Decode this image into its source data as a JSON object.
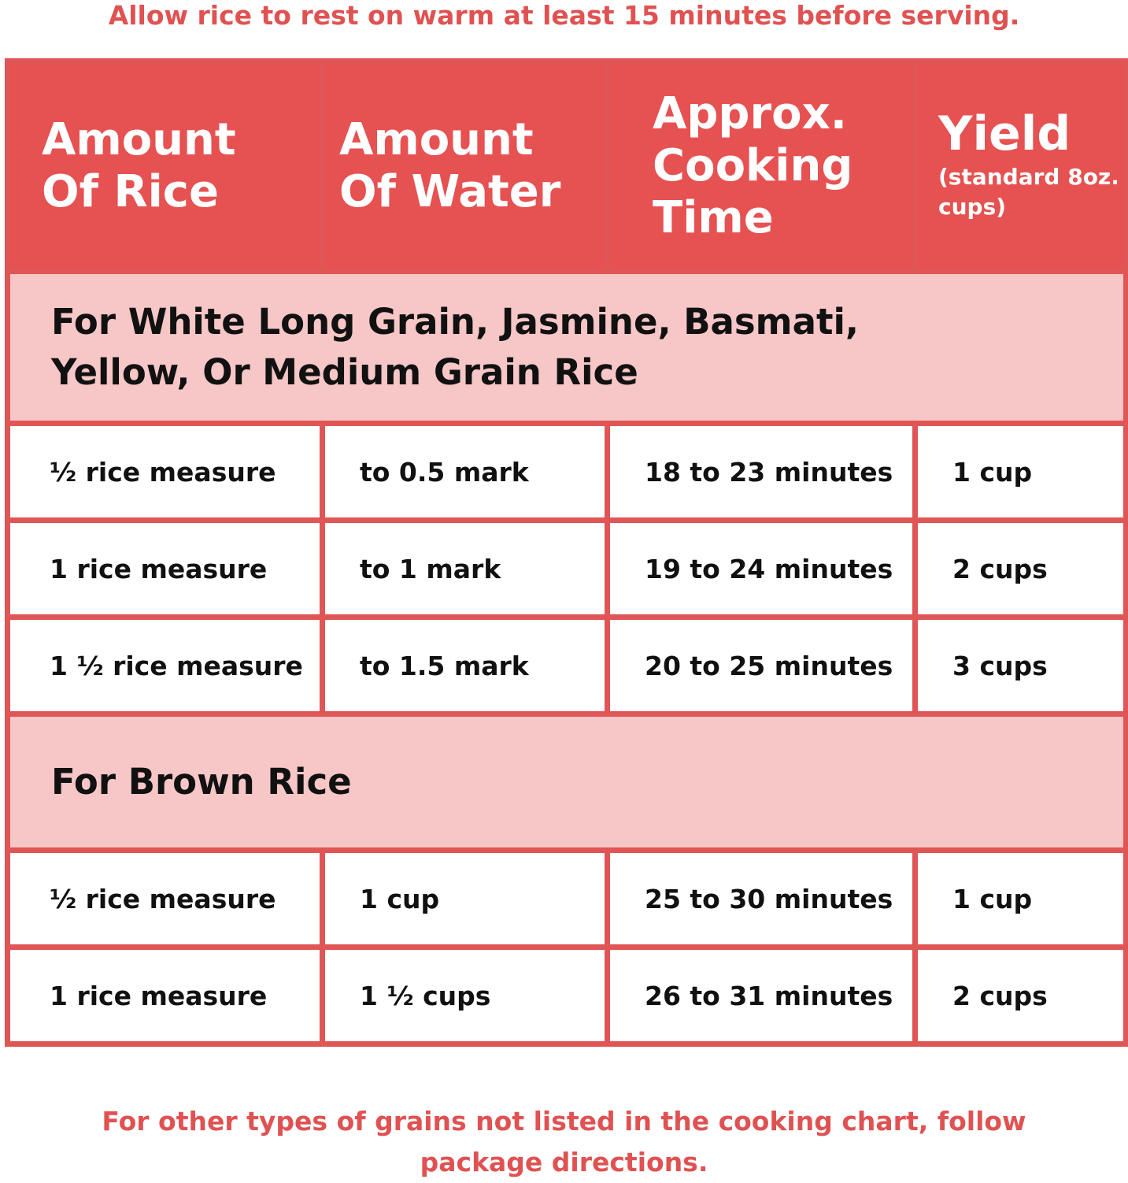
{
  "colors": {
    "header_bg": "#e65151",
    "section_bg": "#f7c6c6",
    "border": "#e05555",
    "note_text": "#e05252"
  },
  "top_note": "Allow rice to rest on warm at least 15 minutes before serving.",
  "headers": [
    {
      "label": "Amount Of Rice"
    },
    {
      "label": "Amount Of Water"
    },
    {
      "label": "Approx. Cooking Time"
    },
    {
      "label": "Yield",
      "sub": "(standard 8oz. cups)"
    }
  ],
  "sections": [
    {
      "title": "For White Long Grain, Jasmine, Basmati, Yellow, Or Medium Grain Rice",
      "rows": [
        [
          "½ rice measure",
          "to 0.5 mark",
          "18 to 23 minutes",
          "1 cup"
        ],
        [
          "1 rice measure",
          "to 1 mark",
          "19 to 24 minutes",
          "2 cups"
        ],
        [
          "1 ½ rice measure",
          "to 1.5 mark",
          "20 to 25 minutes",
          "3 cups"
        ]
      ]
    },
    {
      "title": "For Brown Rice",
      "rows": [
        [
          "½ rice measure",
          "1 cup",
          "25 to 30 minutes",
          "1 cup"
        ],
        [
          "1 rice measure",
          "1 ½ cups",
          "26 to 31 minutes",
          "2 cups"
        ]
      ]
    }
  ],
  "bottom_note": "For other types of grains not listed in the cooking chart, follow package directions."
}
